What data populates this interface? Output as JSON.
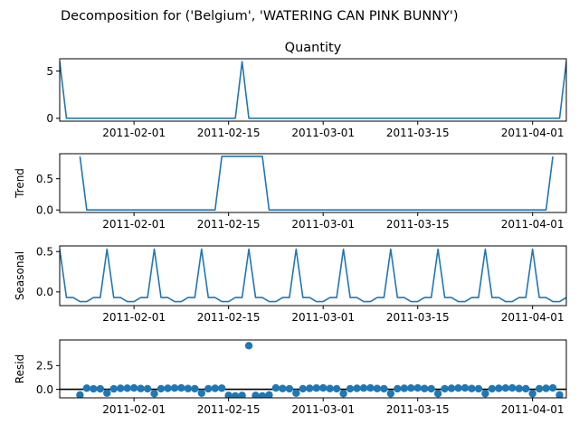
{
  "figure_title": "Decomposition for ('Belgium', 'WATERING CAN PINK BUNNY')",
  "colors": {
    "line": "#1f77b4",
    "axis": "#000000",
    "zero_line": "#000000"
  },
  "chart_data": [
    {
      "type": "line",
      "panel": "observed",
      "title": "Quantity",
      "ylabel": "",
      "x_start": "2011-01-21",
      "x_end": "2011-04-06",
      "xticks": [
        "2011-02-01",
        "2011-02-15",
        "2011-03-01",
        "2011-03-15",
        "2011-04-01"
      ],
      "ylim": [
        -0.3,
        6.3
      ],
      "yticks": [
        0,
        5
      ],
      "series": [
        {
          "points": [
            [
              "2011-01-21",
              6
            ],
            [
              "2011-01-22",
              0
            ],
            [
              "2011-02-16",
              0
            ],
            [
              "2011-02-17",
              6
            ],
            [
              "2011-02-18",
              0
            ],
            [
              "2011-04-05",
              0
            ],
            [
              "2011-04-06",
              6
            ]
          ]
        }
      ]
    },
    {
      "type": "line",
      "panel": "trend",
      "title": "",
      "ylabel": "Trend",
      "x_start": "2011-01-21",
      "x_end": "2011-04-06",
      "xticks": [
        "2011-02-01",
        "2011-02-15",
        "2011-03-01",
        "2011-03-15",
        "2011-04-01"
      ],
      "ylim": [
        -0.04,
        0.9
      ],
      "yticks": [
        0.0,
        0.5
      ],
      "series": [
        {
          "points": [
            [
              "2011-01-24",
              0.857
            ],
            [
              "2011-01-25",
              0
            ],
            [
              "2011-02-13",
              0
            ],
            [
              "2011-02-14",
              0.857
            ],
            [
              "2011-02-20",
              0.857
            ],
            [
              "2011-02-21",
              0
            ],
            [
              "2011-04-03",
              0
            ],
            [
              "2011-04-04",
              0.857
            ]
          ]
        }
      ]
    },
    {
      "type": "line",
      "panel": "seasonal",
      "title": "",
      "ylabel": "Seasonal",
      "x_start": "2011-01-21",
      "x_end": "2011-04-06",
      "xticks": [
        "2011-02-01",
        "2011-02-15",
        "2011-03-01",
        "2011-03-15",
        "2011-04-01"
      ],
      "ylim": [
        -0.17,
        0.57
      ],
      "yticks": [
        0.0,
        0.5
      ],
      "weekly_pattern": [
        0.53,
        -0.07,
        -0.07,
        -0.12,
        -0.12,
        -0.07,
        -0.07
      ],
      "series": [
        {
          "start": "2011-01-21",
          "end": "2011-04-06"
        }
      ]
    },
    {
      "type": "scatter",
      "panel": "resid",
      "title": "",
      "ylabel": "Resid",
      "x_start": "2011-01-21",
      "x_end": "2011-04-06",
      "xticks": [
        "2011-02-01",
        "2011-02-15",
        "2011-03-01",
        "2011-03-15",
        "2011-04-01"
      ],
      "ylim": [
        -0.9,
        5.2
      ],
      "yticks": [
        0.0,
        2.5
      ],
      "zero_line": true,
      "series": [
        {
          "points": [
            [
              "2011-01-24",
              -0.6
            ],
            [
              "2011-01-25",
              0.12
            ],
            [
              "2011-01-26",
              0.05
            ],
            [
              "2011-01-27",
              0.05
            ],
            [
              "2011-01-28",
              -0.4
            ],
            [
              "2011-01-29",
              0.05
            ],
            [
              "2011-01-30",
              0.1
            ],
            [
              "2011-01-31",
              0.12
            ],
            [
              "2011-02-01",
              0.14
            ],
            [
              "2011-02-02",
              0.08
            ],
            [
              "2011-02-03",
              0.06
            ],
            [
              "2011-02-04",
              -0.45
            ],
            [
              "2011-02-05",
              0.06
            ],
            [
              "2011-02-06",
              0.1
            ],
            [
              "2011-02-07",
              0.13
            ],
            [
              "2011-02-08",
              0.14
            ],
            [
              "2011-02-09",
              0.08
            ],
            [
              "2011-02-10",
              0.06
            ],
            [
              "2011-02-11",
              -0.4
            ],
            [
              "2011-02-12",
              0.06
            ],
            [
              "2011-02-13",
              0.1
            ],
            [
              "2011-02-14",
              0.12
            ],
            [
              "2011-02-15",
              -0.65
            ],
            [
              "2011-02-16",
              -0.7
            ],
            [
              "2011-02-17",
              -0.65
            ],
            [
              "2011-02-18",
              4.6
            ],
            [
              "2011-02-19",
              -0.65
            ],
            [
              "2011-02-20",
              -0.7
            ],
            [
              "2011-02-21",
              -0.6
            ],
            [
              "2011-02-22",
              0.14
            ],
            [
              "2011-02-23",
              0.08
            ],
            [
              "2011-02-24",
              0.06
            ],
            [
              "2011-02-25",
              -0.4
            ],
            [
              "2011-02-26",
              0.06
            ],
            [
              "2011-02-27",
              0.1
            ],
            [
              "2011-02-28",
              0.13
            ],
            [
              "2011-03-01",
              0.14
            ],
            [
              "2011-03-02",
              0.08
            ],
            [
              "2011-03-03",
              0.06
            ],
            [
              "2011-03-04",
              -0.45
            ],
            [
              "2011-03-05",
              0.06
            ],
            [
              "2011-03-06",
              0.1
            ],
            [
              "2011-03-07",
              0.13
            ],
            [
              "2011-03-08",
              0.14
            ],
            [
              "2011-03-09",
              0.08
            ],
            [
              "2011-03-10",
              0.06
            ],
            [
              "2011-03-11",
              -0.45
            ],
            [
              "2011-03-12",
              0.06
            ],
            [
              "2011-03-13",
              0.1
            ],
            [
              "2011-03-14",
              0.13
            ],
            [
              "2011-03-15",
              0.14
            ],
            [
              "2011-03-16",
              0.08
            ],
            [
              "2011-03-17",
              0.06
            ],
            [
              "2011-03-18",
              -0.45
            ],
            [
              "2011-03-19",
              0.06
            ],
            [
              "2011-03-20",
              0.1
            ],
            [
              "2011-03-21",
              0.13
            ],
            [
              "2011-03-22",
              0.14
            ],
            [
              "2011-03-23",
              0.08
            ],
            [
              "2011-03-24",
              0.06
            ],
            [
              "2011-03-25",
              -0.45
            ],
            [
              "2011-03-26",
              0.06
            ],
            [
              "2011-03-27",
              0.1
            ],
            [
              "2011-03-28",
              0.13
            ],
            [
              "2011-03-29",
              0.14
            ],
            [
              "2011-03-30",
              0.08
            ],
            [
              "2011-03-31",
              0.06
            ],
            [
              "2011-04-01",
              -0.45
            ],
            [
              "2011-04-02",
              0.06
            ],
            [
              "2011-04-03",
              0.1
            ],
            [
              "2011-04-04",
              0.14
            ],
            [
              "2011-04-05",
              -0.6
            ]
          ]
        }
      ]
    }
  ]
}
